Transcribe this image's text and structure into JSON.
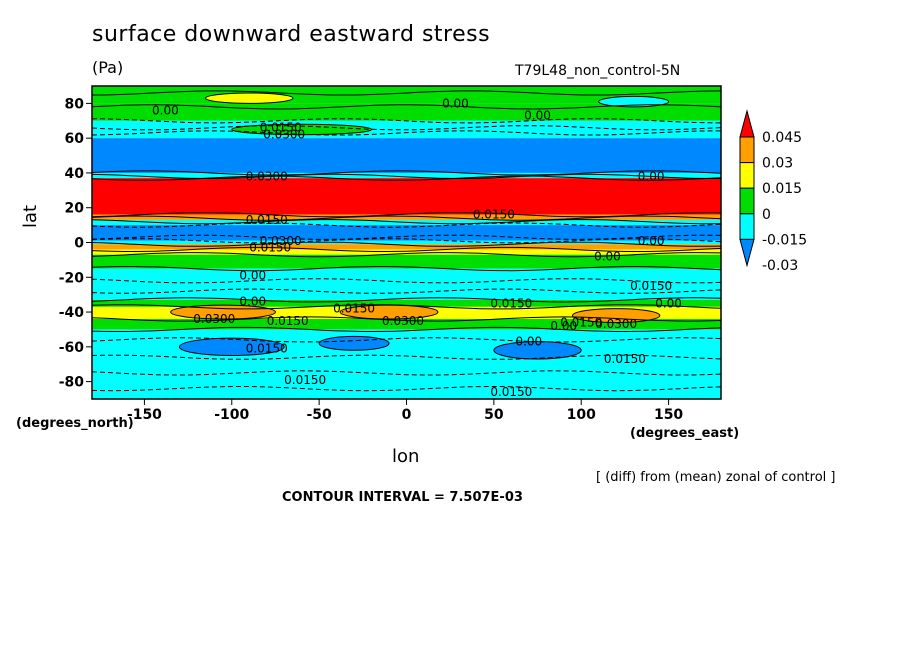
{
  "header": {
    "title": "surface downward eastward stress",
    "units": "(Pa)",
    "run_label": "T79L48_non_control-5N"
  },
  "axes": {
    "ylabel": "lat",
    "xlabel": "lon",
    "y_units": "(degrees_north)",
    "x_units": "(degrees_east)"
  },
  "footer": {
    "diff_note": "[ (diff) from (mean) zonal of control ]",
    "contour_interval": "CONTOUR INTERVAL = 7.507E-03"
  },
  "colors": {
    "red": "#ff0000",
    "orange": "#ff9f00",
    "yellow": "#ffff00",
    "green": "#00dd00",
    "cyan": "#00ffff",
    "blue": "#0088ff"
  },
  "chart_data": {
    "type": "heatmap",
    "title": "surface downward eastward stress",
    "xlabel": "lon",
    "ylabel": "lat",
    "xlim": [
      -180,
      180
    ],
    "ylim": [
      -90,
      90
    ],
    "x_ticks": [
      -150,
      -100,
      -50,
      0,
      50,
      100,
      150
    ],
    "x_tick_labels": [
      "-150",
      "-100",
      "-50",
      "0",
      "50",
      "100",
      "150"
    ],
    "y_ticks": [
      -80,
      -60,
      -40,
      -20,
      0,
      20,
      40,
      60,
      80
    ],
    "y_tick_labels": [
      "-80",
      "-60",
      "-40",
      "-20",
      "0",
      "20",
      "40",
      "60",
      "80"
    ],
    "colorbar": {
      "levels": [
        -0.03,
        -0.015,
        0,
        0.015,
        0.03,
        0.045
      ],
      "labels": [
        "-0.03",
        "-0.015",
        "0",
        "0.015",
        "0.03",
        "0.045"
      ],
      "colors": [
        "#0088ff",
        "#00ffff",
        "#00dd00",
        "#ffff00",
        "#ff9f00",
        "#ff0000"
      ]
    },
    "bands": [
      {
        "lat_min": 80,
        "lat_max": 90,
        "color": "#00dd00"
      },
      {
        "lat_min": 70,
        "lat_max": 80,
        "color": "#00dd00"
      },
      {
        "lat_min": 60,
        "lat_max": 70,
        "color": "#00ffff"
      },
      {
        "lat_min": 40,
        "lat_max": 60,
        "color": "#0088ff"
      },
      {
        "lat_min": 37,
        "lat_max": 40,
        "color": "#00ffff"
      },
      {
        "lat_min": 16,
        "lat_max": 37,
        "color": "#ff0000"
      },
      {
        "lat_min": 13,
        "lat_max": 16,
        "color": "#ff9f00"
      },
      {
        "lat_min": 10,
        "lat_max": 13,
        "color": "#00ffff"
      },
      {
        "lat_min": 1,
        "lat_max": 10,
        "color": "#0088ff"
      },
      {
        "lat_min": -1,
        "lat_max": 1,
        "color": "#00ffff"
      },
      {
        "lat_min": -4,
        "lat_max": -1,
        "color": "#ff9f00"
      },
      {
        "lat_min": -7,
        "lat_max": -4,
        "color": "#ffff00"
      },
      {
        "lat_min": -15,
        "lat_max": -7,
        "color": "#00dd00"
      },
      {
        "lat_min": -33,
        "lat_max": -15,
        "color": "#00ffff"
      },
      {
        "lat_min": -37,
        "lat_max": -33,
        "color": "#00dd00"
      },
      {
        "lat_min": -44,
        "lat_max": -37,
        "color": "#ffff00"
      },
      {
        "lat_min": -50,
        "lat_max": -44,
        "color": "#00dd00"
      },
      {
        "lat_min": -90,
        "lat_max": -50,
        "color": "#00ffff"
      }
    ],
    "blobs": [
      {
        "lon": -90,
        "lat": 83,
        "rlon": 25,
        "rlat": 3,
        "color": "#ffff00"
      },
      {
        "lon": 130,
        "lat": 81,
        "rlon": 20,
        "rlat": 3,
        "color": "#00ffff"
      },
      {
        "lon": -105,
        "lat": -40,
        "rlon": 30,
        "rlat": 4,
        "color": "#ff9f00"
      },
      {
        "lon": -10,
        "lat": -40,
        "rlon": 28,
        "rlat": 4,
        "color": "#ff9f00"
      },
      {
        "lon": 120,
        "lat": -42,
        "rlon": 25,
        "rlat": 4,
        "color": "#ff9f00"
      },
      {
        "lon": -100,
        "lat": -60,
        "rlon": 30,
        "rlat": 5,
        "color": "#0088ff"
      },
      {
        "lon": -30,
        "lat": -58,
        "rlon": 20,
        "rlat": 4,
        "color": "#0088ff"
      },
      {
        "lon": 75,
        "lat": -62,
        "rlon": 25,
        "rlat": 5,
        "color": "#0088ff"
      },
      {
        "lon": -60,
        "lat": 65,
        "rlon": 40,
        "rlat": 3,
        "color": "#00dd00"
      }
    ],
    "contour_labels": [
      {
        "text": "0.00",
        "lon": -138,
        "lat": 76
      },
      {
        "text": "0.00",
        "lon": 28,
        "lat": 80
      },
      {
        "text": "0.00",
        "lon": 75,
        "lat": 73
      },
      {
        "text": "0.0150",
        "lon": -72,
        "lat": 66
      },
      {
        "text": "0.0300",
        "lon": -70,
        "lat": 62
      },
      {
        "text": "0.0300",
        "lon": -80,
        "lat": 38
      },
      {
        "text": "0.00",
        "lon": 140,
        "lat": 38
      },
      {
        "text": "0.0150",
        "lon": 50,
        "lat": 16
      },
      {
        "text": "0.0150",
        "lon": -80,
        "lat": 13
      },
      {
        "text": "0.0300",
        "lon": -72,
        "lat": 1
      },
      {
        "text": "0.0150",
        "lon": -78,
        "lat": -3
      },
      {
        "text": "0.00",
        "lon": 140,
        "lat": 1
      },
      {
        "text": "0.00",
        "lon": 115,
        "lat": -8
      },
      {
        "text": "0.00",
        "lon": -88,
        "lat": -19
      },
      {
        "text": "0.0150",
        "lon": 140,
        "lat": -25
      },
      {
        "text": "0.00",
        "lon": -88,
        "lat": -34
      },
      {
        "text": "0.00",
        "lon": 150,
        "lat": -35
      },
      {
        "text": "0.0150",
        "lon": -30,
        "lat": -38
      },
      {
        "text": "0.0150",
        "lon": 60,
        "lat": -35
      },
      {
        "text": "0.0300",
        "lon": -110,
        "lat": -44
      },
      {
        "text": "0.0150",
        "lon": -68,
        "lat": -45
      },
      {
        "text": "0.0300",
        "lon": -2,
        "lat": -45
      },
      {
        "text": "0.0150",
        "lon": 100,
        "lat": -46
      },
      {
        "text": "0.0300",
        "lon": 120,
        "lat": -47
      },
      {
        "text": "0.00",
        "lon": 90,
        "lat": -48
      },
      {
        "text": "0.00",
        "lon": 70,
        "lat": -57
      },
      {
        "text": "0.0150",
        "lon": -80,
        "lat": -61
      },
      {
        "text": "0.0150",
        "lon": 125,
        "lat": -67
      },
      {
        "text": "0.0150",
        "lon": -58,
        "lat": -79
      },
      {
        "text": "0.0150",
        "lon": 60,
        "lat": -86
      }
    ],
    "contour_lines": [
      {
        "lat": 86,
        "dashed": false
      },
      {
        "lat": 78,
        "dashed": false
      },
      {
        "lat": 70,
        "dashed": true
      },
      {
        "lat": 66,
        "dashed": true
      },
      {
        "lat": 63,
        "dashed": true
      },
      {
        "lat": 40,
        "dashed": false
      },
      {
        "lat": 38,
        "dashed": false
      },
      {
        "lat": 37,
        "dashed": false
      },
      {
        "lat": 16,
        "dashed": false
      },
      {
        "lat": 14,
        "dashed": false
      },
      {
        "lat": 12,
        "dashed": false
      },
      {
        "lat": 10,
        "dashed": true
      },
      {
        "lat": 3,
        "dashed": true
      },
      {
        "lat": 1,
        "dashed": true
      },
      {
        "lat": -1,
        "dashed": false
      },
      {
        "lat": -4,
        "dashed": false
      },
      {
        "lat": -7,
        "dashed": false
      },
      {
        "lat": -15,
        "dashed": false
      },
      {
        "lat": -22,
        "dashed": true
      },
      {
        "lat": -28,
        "dashed": true
      },
      {
        "lat": -33,
        "dashed": false
      },
      {
        "lat": -37,
        "dashed": false
      },
      {
        "lat": -44,
        "dashed": false
      },
      {
        "lat": -50,
        "dashed": false
      },
      {
        "lat": -56,
        "dashed": true
      },
      {
        "lat": -66,
        "dashed": true
      },
      {
        "lat": -75,
        "dashed": true
      },
      {
        "lat": -84,
        "dashed": true
      }
    ]
  }
}
